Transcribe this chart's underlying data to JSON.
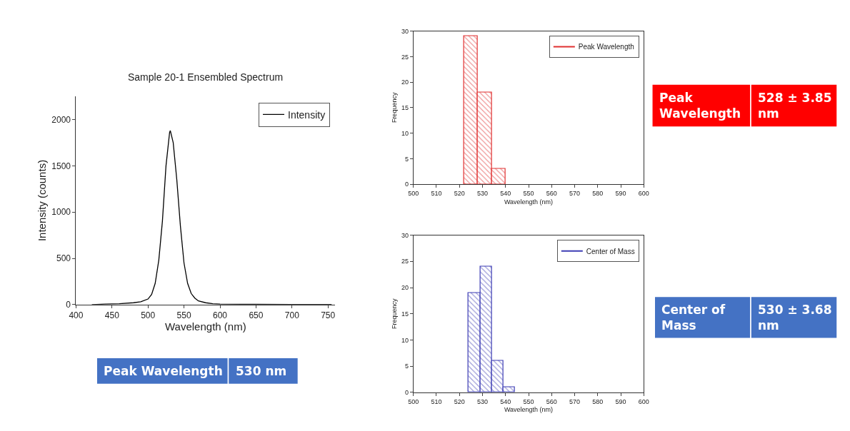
{
  "chart_data": [
    {
      "type": "line",
      "title": "Sample 20-1 Ensembled Spectrum",
      "xlabel": "Wavelength (nm)",
      "ylabel": "Intensity (counts)",
      "x": [
        422,
        440,
        460,
        480,
        490,
        500,
        505,
        510,
        515,
        520,
        525,
        530,
        531,
        535,
        540,
        545,
        550,
        555,
        560,
        565,
        570,
        580,
        590,
        600,
        650,
        700,
        755
      ],
      "series": [
        {
          "name": "Intensity",
          "color": "#000000",
          "values": [
            0,
            5,
            10,
            20,
            30,
            60,
            110,
            230,
            480,
            900,
            1500,
            1860,
            1880,
            1750,
            1350,
            850,
            450,
            230,
            120,
            70,
            40,
            20,
            10,
            5,
            3,
            2,
            2
          ]
        }
      ],
      "xlim": [
        400,
        760
      ],
      "xticks": [
        400,
        450,
        500,
        550,
        600,
        650,
        700,
        750
      ],
      "ylim": [
        0,
        2250
      ],
      "yticks": [
        0,
        500,
        1000,
        1500,
        2000
      ],
      "legend": "top right",
      "marker": "none",
      "line_style": "solid",
      "annotations": [
        "Peak Wavelength",
        "530 nm"
      ]
    },
    {
      "type": "histogram",
      "xlabel": "Wavelength (nm)",
      "ylabel": "Frequency",
      "bins": [
        522,
        528,
        534,
        540
      ],
      "series": [
        {
          "name": "Peak Wavelength",
          "color": "#e03030",
          "values": [
            29,
            18,
            3
          ]
        }
      ],
      "xlim": [
        500,
        600
      ],
      "xticks": [
        500,
        510,
        520,
        530,
        540,
        550,
        560,
        570,
        580,
        590,
        600
      ],
      "ylim": [
        0,
        30
      ],
      "yticks": [
        0,
        5,
        10,
        15,
        20,
        25,
        30
      ],
      "legend": "top right",
      "annotations": [
        "Peak Wavelength",
        "528 ± 3.85 nm"
      ]
    },
    {
      "type": "histogram",
      "xlabel": "Wavelength (nm)",
      "ylabel": "Frequency",
      "bins": [
        524,
        529,
        534,
        539,
        544
      ],
      "series": [
        {
          "name": "Center of Mass",
          "color": "#3c3cb4",
          "values": [
            19,
            24,
            6,
            1
          ]
        }
      ],
      "xlim": [
        500,
        600
      ],
      "xticks": [
        500,
        510,
        520,
        530,
        540,
        550,
        560,
        570,
        580,
        590,
        600
      ],
      "ylim": [
        0,
        30
      ],
      "yticks": [
        0,
        5,
        10,
        15,
        20,
        25,
        30
      ],
      "legend": "top right",
      "annotations": [
        "Center of Mass",
        "530 ± 3.68 nm"
      ]
    }
  ]
}
